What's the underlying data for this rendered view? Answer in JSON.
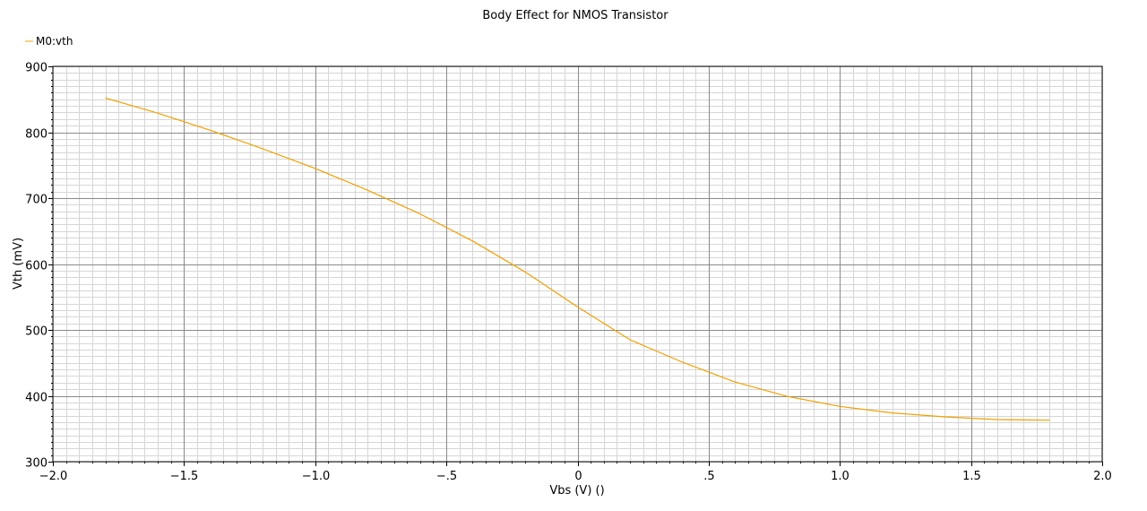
{
  "colors": {
    "series": "#f2a000",
    "grid_major": "#8a8a8a",
    "grid_minor": "#d6d6d6",
    "axis": "#000000",
    "background": "#ffffff"
  },
  "chart_data": {
    "type": "line",
    "title": "Body Effect for NMOS Transistor",
    "xlabel": "Vbs (V) ()",
    "ylabel": "Vth (mV)",
    "xlim": [
      -2.0,
      2.0
    ],
    "ylim": [
      300,
      900
    ],
    "x_ticks": [
      -2.0,
      -1.5,
      -1.0,
      -0.5,
      0,
      0.5,
      1.0,
      1.5,
      2.0
    ],
    "x_tick_labels": [
      "−2.0",
      "−1.5",
      "−1.0",
      "−.5",
      "0",
      ".5",
      "1.0",
      "1.5",
      "2.0"
    ],
    "y_ticks": [
      300,
      400,
      500,
      600,
      700,
      800,
      900
    ],
    "y_tick_labels": [
      "300",
      "400",
      "500",
      "600",
      "700",
      "800",
      "900"
    ],
    "grid": true,
    "legend_position": "top-left",
    "series": [
      {
        "name": "M0:vth",
        "x": [
          -1.8,
          -1.6,
          -1.4,
          -1.2,
          -1.0,
          -0.8,
          -0.6,
          -0.4,
          -0.2,
          0.0,
          0.2,
          0.4,
          0.6,
          0.8,
          1.0,
          1.2,
          1.4,
          1.6,
          1.8
        ],
        "y": [
          852,
          829,
          803,
          775,
          745,
          712,
          676,
          635,
          588,
          535,
          485,
          451,
          421,
          399,
          384,
          374,
          368,
          364,
          363
        ]
      }
    ]
  }
}
